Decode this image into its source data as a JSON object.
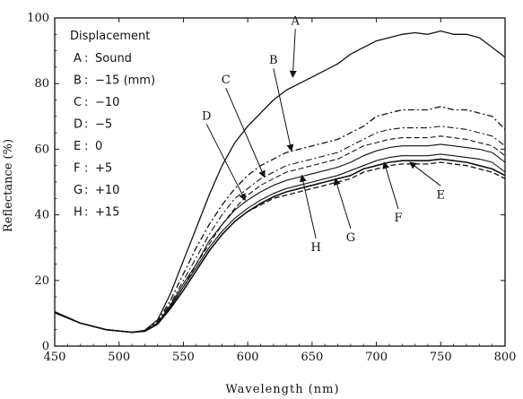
{
  "chart_data": {
    "type": "line",
    "xlabel": "Wavelength (nm)",
    "ylabel": "Reflectance (%)",
    "xlim": [
      450,
      800
    ],
    "ylim": [
      0,
      100
    ],
    "x_ticks": [
      450,
      500,
      550,
      600,
      650,
      700,
      750,
      800
    ],
    "y_ticks": [
      0,
      20,
      40,
      60,
      80,
      100
    ],
    "legend": {
      "title": "Displacement",
      "placement": "top-left",
      "entries": [
        {
          "label": "A",
          "sep": ":",
          "text": "Sound"
        },
        {
          "label": "B",
          "sep": ":",
          "text": "−15 (mm)"
        },
        {
          "label": "C",
          "sep": ":",
          "text": "−10"
        },
        {
          "label": "D",
          "sep": ":",
          "text": "−5"
        },
        {
          "label": "E",
          "sep": ":",
          "text": "0"
        },
        {
          "label": "F",
          "sep": ":",
          "text": "+5"
        },
        {
          "label": "G",
          "sep": ":",
          "text": "+10"
        },
        {
          "label": "H",
          "sep": ":",
          "text": "+15"
        }
      ]
    },
    "series": [
      {
        "name": "A",
        "dash": "solid",
        "width": 1.3,
        "x": [
          450,
          470,
          490,
          510,
          520,
          530,
          540,
          550,
          560,
          570,
          580,
          590,
          600,
          610,
          620,
          630,
          640,
          650,
          660,
          670,
          680,
          690,
          700,
          710,
          720,
          730,
          740,
          750,
          760,
          770,
          780,
          790,
          800
        ],
        "y": [
          10.5,
          7,
          5,
          4.2,
          4.8,
          8,
          16,
          26,
          36,
          46,
          55,
          62,
          67,
          71,
          75,
          78,
          80,
          82,
          84,
          86,
          89,
          91,
          93,
          94,
          95,
          95.5,
          95,
          96,
          95,
          95,
          94,
          91,
          88
        ]
      },
      {
        "name": "B",
        "dash": "dashdot",
        "width": 1.3,
        "x": [
          450,
          470,
          490,
          510,
          520,
          530,
          540,
          550,
          560,
          570,
          580,
          590,
          600,
          610,
          620,
          630,
          640,
          650,
          660,
          670,
          680,
          690,
          700,
          710,
          720,
          730,
          740,
          750,
          760,
          770,
          780,
          790,
          800
        ],
        "y": [
          10.4,
          7,
          5,
          4.2,
          4.7,
          7.5,
          14,
          22,
          30,
          37,
          43,
          48,
          52,
          55,
          57,
          59,
          60,
          61,
          62,
          63,
          65,
          67,
          70,
          71,
          72,
          72,
          72,
          73,
          72,
          72,
          71,
          70,
          66
        ]
      },
      {
        "name": "C",
        "dash": "dashdot",
        "width": 1.1,
        "x": [
          450,
          470,
          490,
          510,
          520,
          530,
          540,
          550,
          560,
          570,
          580,
          590,
          600,
          610,
          620,
          630,
          640,
          650,
          660,
          670,
          680,
          690,
          700,
          710,
          720,
          730,
          740,
          750,
          760,
          770,
          780,
          790,
          800
        ],
        "y": [
          10.4,
          7,
          5,
          4.2,
          4.7,
          7.2,
          13,
          20,
          27,
          34,
          40,
          45,
          48,
          51,
          53,
          55,
          56,
          57,
          58,
          59,
          61,
          63,
          65,
          66,
          66.5,
          66.5,
          66.5,
          67,
          66.5,
          66,
          65,
          64,
          61
        ]
      },
      {
        "name": "D",
        "dash": "dashed",
        "width": 1.1,
        "x": [
          450,
          470,
          490,
          510,
          520,
          530,
          540,
          550,
          560,
          570,
          580,
          590,
          600,
          610,
          620,
          630,
          640,
          650,
          660,
          670,
          680,
          690,
          700,
          710,
          720,
          730,
          740,
          750,
          760,
          770,
          780,
          790,
          800
        ],
        "y": [
          10.3,
          7,
          5,
          4.2,
          4.6,
          7,
          12,
          18,
          25,
          31,
          37,
          42,
          46,
          49,
          51,
          53,
          54,
          55,
          56,
          57,
          59,
          61,
          62,
          63,
          63.5,
          63.5,
          63.5,
          64,
          63.5,
          63,
          62,
          61,
          58
        ]
      },
      {
        "name": "E",
        "dash": "dashed",
        "width": 1.3,
        "x": [
          450,
          470,
          490,
          510,
          520,
          530,
          540,
          550,
          560,
          570,
          580,
          590,
          600,
          610,
          620,
          630,
          640,
          650,
          660,
          670,
          680,
          690,
          700,
          710,
          720,
          730,
          740,
          750,
          760,
          770,
          780,
          790,
          800
        ],
        "y": [
          10.3,
          7,
          5,
          4.2,
          4.6,
          6.8,
          11.5,
          17,
          23,
          29,
          34,
          38,
          41,
          43,
          45,
          46,
          47,
          48,
          49,
          50,
          51,
          53,
          54,
          55,
          55.5,
          55.5,
          55.5,
          56,
          55.5,
          55,
          54,
          53,
          51
        ]
      },
      {
        "name": "F",
        "dash": "solid",
        "width": 1.1,
        "x": [
          450,
          470,
          490,
          510,
          520,
          530,
          540,
          550,
          560,
          570,
          580,
          590,
          600,
          610,
          620,
          630,
          640,
          650,
          660,
          670,
          680,
          690,
          700,
          710,
          720,
          730,
          740,
          750,
          760,
          770,
          780,
          790,
          800
        ],
        "y": [
          10.3,
          7,
          5,
          4.2,
          4.6,
          6.9,
          12,
          18,
          24,
          30,
          35,
          39,
          42,
          44.5,
          46.5,
          48,
          49,
          50,
          51,
          52,
          53.5,
          55,
          56.5,
          57.5,
          58,
          58,
          58,
          58.5,
          58,
          57.5,
          57,
          56,
          53
        ]
      },
      {
        "name": "G",
        "dash": "solid",
        "width": 1.6,
        "x": [
          450,
          470,
          490,
          510,
          520,
          530,
          540,
          550,
          560,
          570,
          580,
          590,
          600,
          610,
          620,
          630,
          640,
          650,
          660,
          670,
          680,
          690,
          700,
          710,
          720,
          730,
          740,
          750,
          760,
          770,
          780,
          790,
          800
        ],
        "y": [
          10.2,
          7,
          5,
          4.2,
          4.5,
          6.7,
          11.5,
          17,
          23,
          29,
          34,
          38,
          41,
          43.5,
          45.5,
          47,
          48,
          49,
          50,
          51,
          52,
          54,
          55,
          56,
          56.5,
          56.5,
          56.5,
          57,
          56.5,
          56,
          55,
          54,
          52
        ]
      },
      {
        "name": "H",
        "dash": "solid",
        "width": 1.1,
        "x": [
          450,
          470,
          490,
          510,
          520,
          530,
          540,
          550,
          560,
          570,
          580,
          590,
          600,
          610,
          620,
          630,
          640,
          650,
          660,
          670,
          680,
          690,
          700,
          710,
          720,
          730,
          740,
          750,
          760,
          770,
          780,
          790,
          800
        ],
        "y": [
          10.3,
          7,
          5,
          4.2,
          4.6,
          7,
          12.5,
          19,
          25,
          32,
          37,
          41.5,
          44.5,
          47,
          49,
          50.5,
          51.5,
          52.5,
          53.5,
          54.5,
          56,
          58,
          59.5,
          60.5,
          61,
          61,
          61,
          61.5,
          61,
          60.5,
          60,
          59,
          56
        ]
      }
    ],
    "annotations": [
      {
        "label": "A",
        "target_x": 635,
        "target_y": 82,
        "text_x": 637,
        "text_y": 98
      },
      {
        "label": "B",
        "target_x": 634,
        "target_y": 59.5,
        "text_x": 620,
        "text_y": 86
      },
      {
        "label": "C",
        "target_x": 613,
        "target_x2": 0,
        "target_y": 51.5,
        "text_x": 583,
        "text_y": 80
      },
      {
        "label": "D",
        "target_x": 598,
        "target_y": 44.5,
        "text_x": 568,
        "text_y": 69
      },
      {
        "label": "E",
        "target_x": 726,
        "target_y": 56,
        "text_x": 750,
        "text_y": 45
      },
      {
        "label": "F",
        "target_x": 706,
        "target_y": 56,
        "text_x": 717,
        "text_y": 38
      },
      {
        "label": "G",
        "target_x": 668,
        "target_y": 51,
        "text_x": 680,
        "text_y": 32
      },
      {
        "label": "H",
        "target_x": 642,
        "target_y": 52,
        "text_x": 653,
        "text_y": 29
      }
    ]
  }
}
